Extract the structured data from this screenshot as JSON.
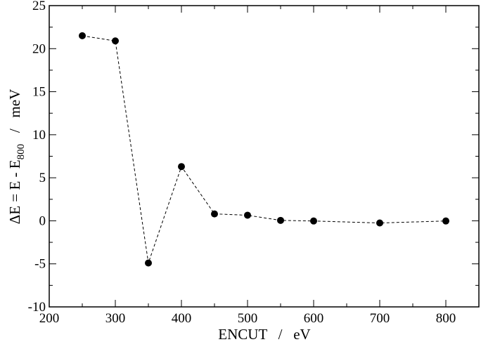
{
  "chart_data": {
    "type": "scatter",
    "title": "",
    "xlabel": "ENCUT   /   eV",
    "ylabel": {
      "main": "ΔE = E - E",
      "subscript": "800",
      "unit": "   /   meV"
    },
    "xlim": [
      200,
      850
    ],
    "ylim": [
      -10,
      25
    ],
    "xticks": [
      200,
      300,
      400,
      500,
      600,
      700,
      800
    ],
    "yticks": [
      -10,
      -5,
      0,
      5,
      10,
      15,
      20,
      25
    ],
    "grid": false,
    "series": [
      {
        "line_style": "dashed",
        "marker": "circle",
        "color": "#000000",
        "x": [
          250,
          300,
          350,
          400,
          450,
          500,
          550,
          600,
          700,
          800
        ],
        "y": [
          21.5,
          20.9,
          -4.9,
          6.3,
          0.8,
          0.65,
          0.05,
          -0.02,
          -0.25,
          -0.02
        ]
      }
    ]
  }
}
